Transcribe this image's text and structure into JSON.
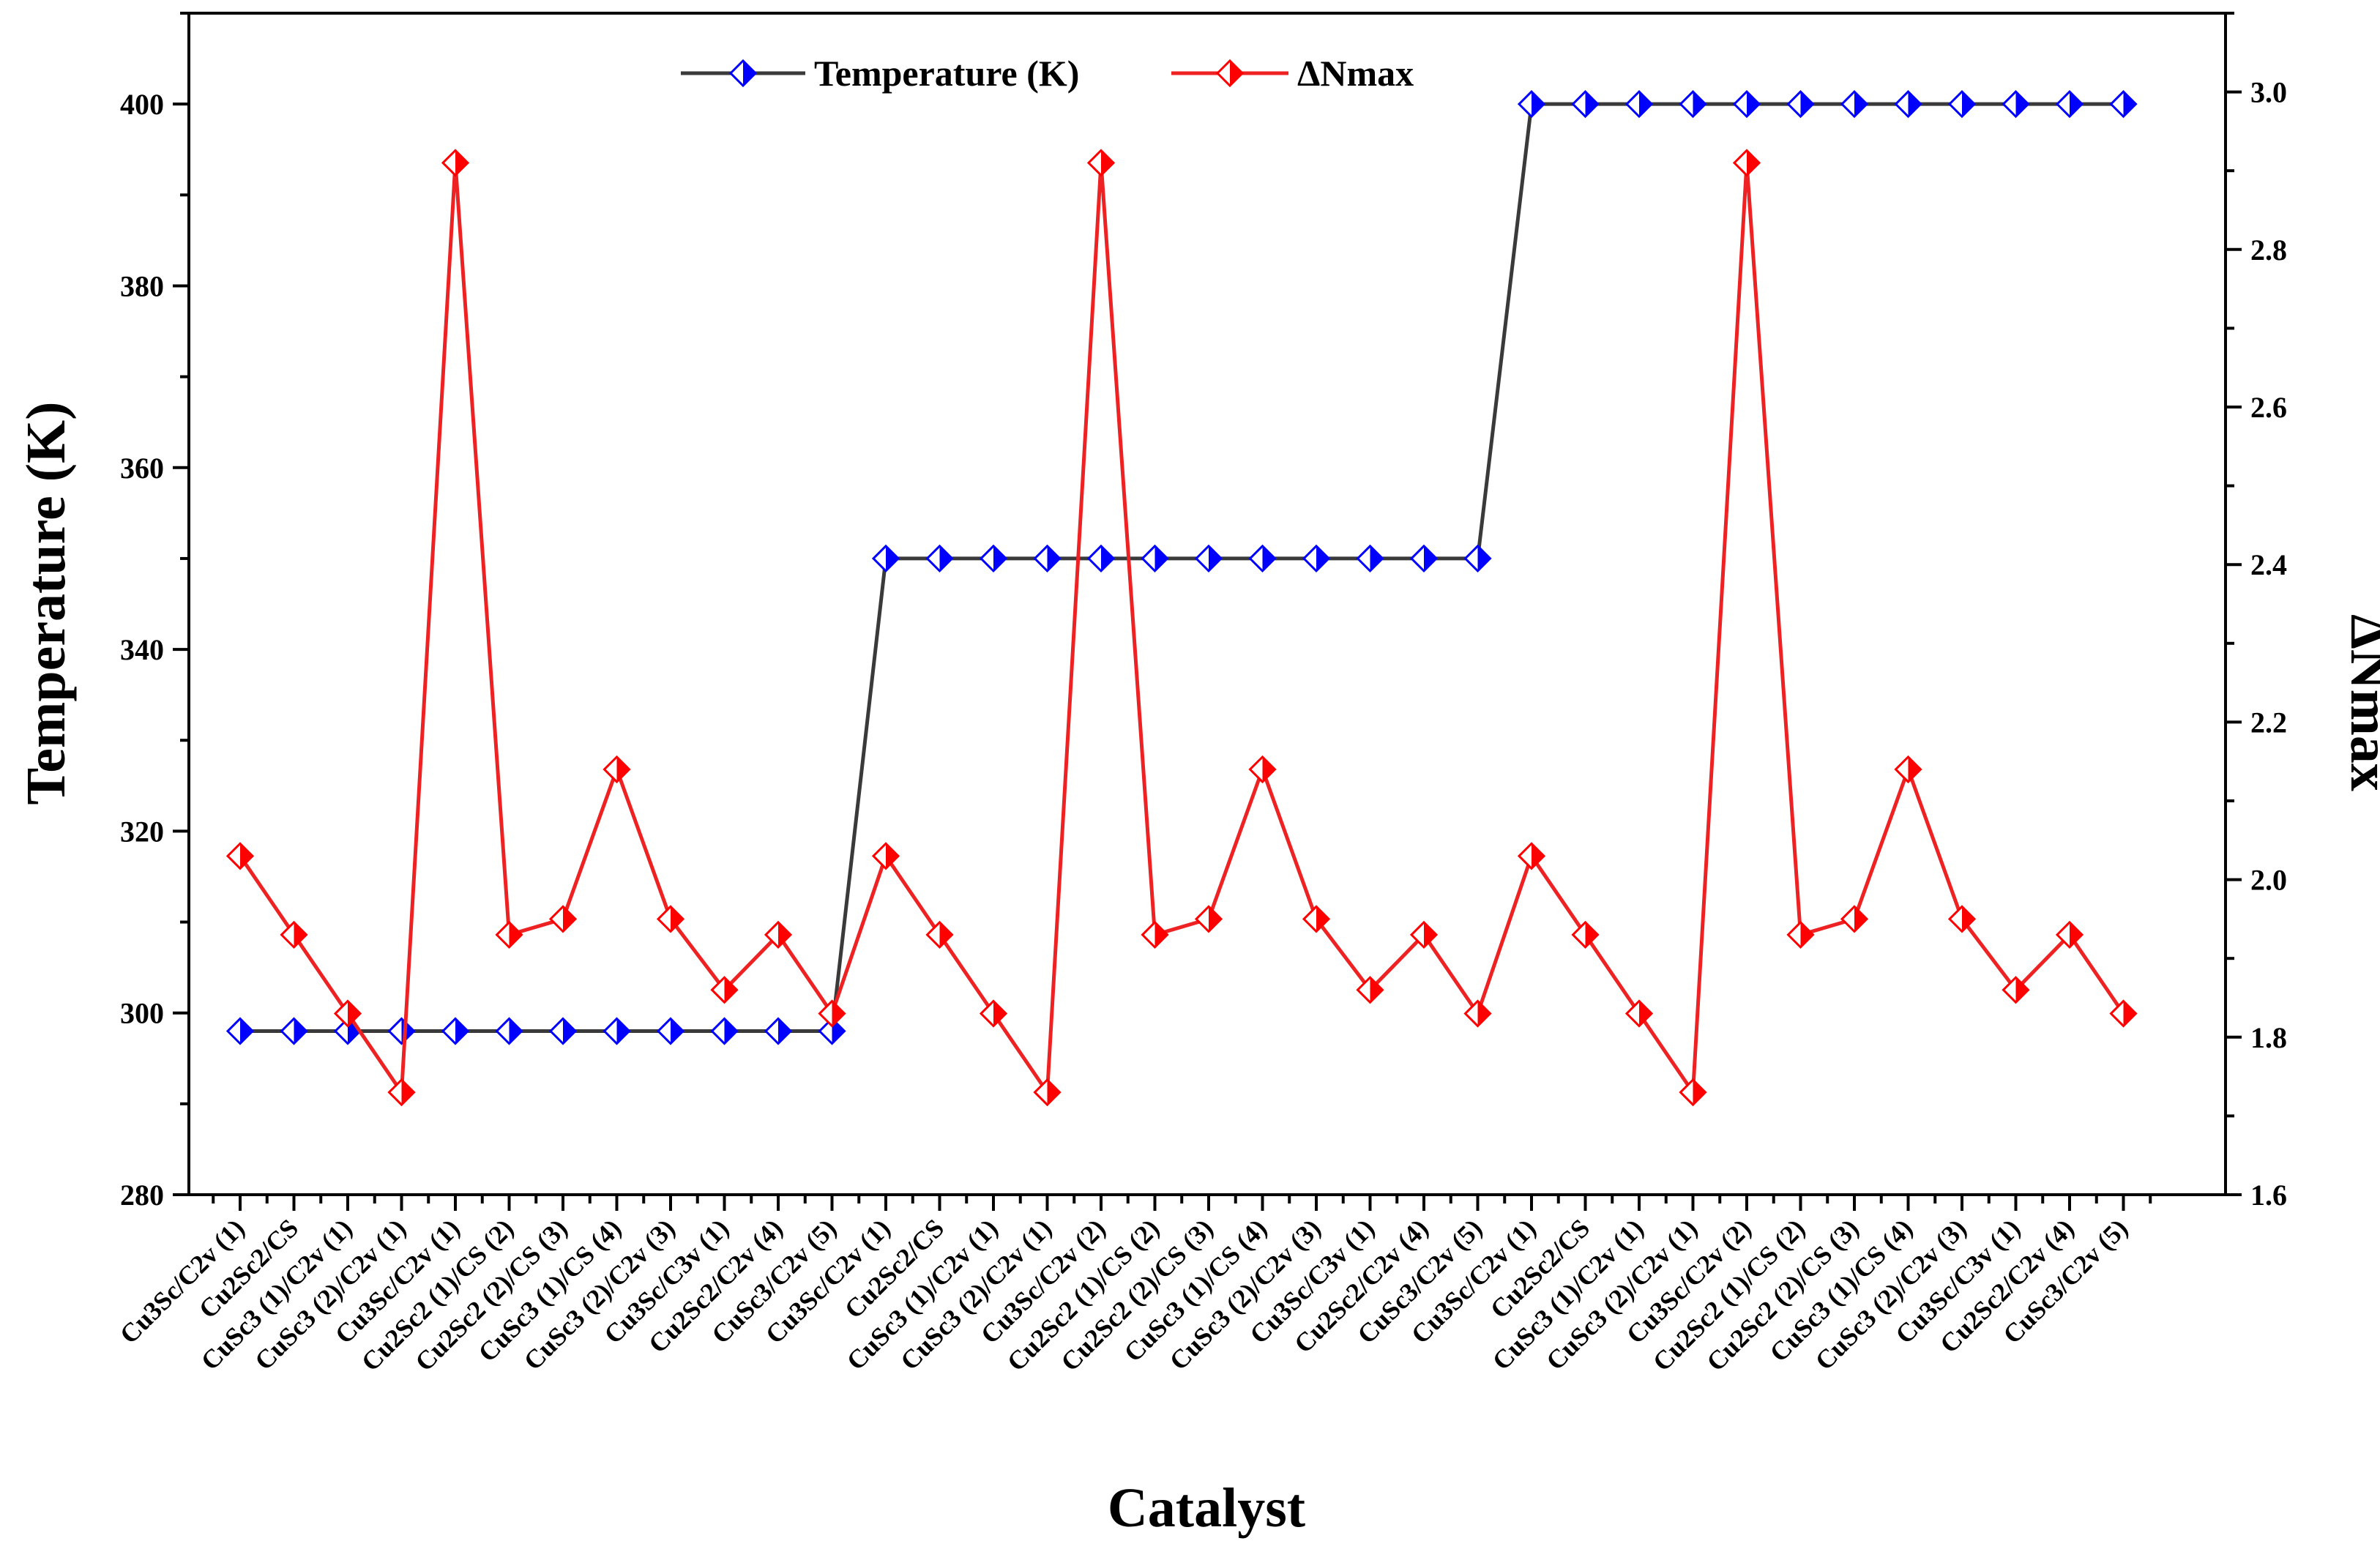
{
  "chart_data": {
    "type": "line",
    "title": "",
    "xlabel": "Catalyst",
    "ylabel": "Temperature (K)",
    "y2label": "ΔNmax",
    "ylim": [
      280,
      410
    ],
    "y2lim": [
      1.6,
      3.1
    ],
    "yticks": [
      "280",
      "300",
      "320",
      "340",
      "360",
      "380",
      "400"
    ],
    "y2ticks": [
      "1.6",
      "1.8",
      "2.0",
      "2.2",
      "2.4",
      "2.6",
      "2.8",
      "3.0"
    ],
    "legend_position": "top-center",
    "categories": [
      "Cu3Sc/C2v (1)",
      "Cu2Sc2/CS",
      "CuSc3 (1)/C2v (1)",
      "CuSc3 (2)/C2v (1)",
      "Cu3Sc/C2v (1)",
      "Cu2Sc2 (1)/CS (2)",
      "Cu2Sc2 (2)/CS (3)",
      "CuSc3 (1)/CS (4)",
      "CuSc3 (2)/C2v (3)",
      "Cu3Sc/C3v (1)",
      "Cu2Sc2/C2v (4)",
      "CuSc3/C2v (5)",
      "Cu3Sc/C2v (1)",
      "Cu2Sc2/CS",
      "CuSc3 (1)/C2v (1)",
      "CuSc3 (2)/C2v (1)",
      "Cu3Sc/C2v (2)",
      "Cu2Sc2 (1)/CS (2)",
      "Cu2Sc2 (2)/CS (3)",
      "CuSc3 (1)/CS (4)",
      "CuSc3 (2)/C2v (3)",
      "Cu3Sc/C3v (1)",
      "Cu2Sc2/C2v (4)",
      "CuSc3/C2v (5)",
      "Cu3Sc/C2v (1)",
      "Cu2Sc2/CS",
      "CuSc3 (1)/C2v (1)",
      "CuSc3 (2)/C2v (1)",
      "Cu3Sc/C2v (2)",
      "Cu2Sc2 (1)/CS (2)",
      "Cu2Sc2 (2)/CS (3)",
      "CuSc3 (1)/CS (4)",
      "CuSc3 (2)/C2v (3)",
      "Cu3Sc/C3v (1)",
      "Cu2Sc2/C2v (4)",
      "CuSc3/C2v (5)"
    ],
    "series": [
      {
        "name": "Temperature (K)",
        "axis": "left",
        "color": "#0000ff",
        "line_color": "#3a3a3a",
        "marker": "half-filled-diamond",
        "values": [
          298,
          298,
          298,
          298,
          298,
          298,
          298,
          298,
          298,
          298,
          298,
          298,
          350,
          350,
          350,
          350,
          350,
          350,
          350,
          350,
          350,
          350,
          350,
          350,
          400,
          400,
          400,
          400,
          400,
          400,
          400,
          400,
          400,
          400,
          400,
          400
        ]
      },
      {
        "name": "ΔNmax",
        "axis": "right",
        "color": "#ff0000",
        "line_color": "#ee2222",
        "marker": "half-filled-diamond",
        "values": [
          2.03,
          1.93,
          1.83,
          1.73,
          2.91,
          1.93,
          1.95,
          2.14,
          1.95,
          1.86,
          1.93,
          1.83,
          2.03,
          1.93,
          1.83,
          1.73,
          2.91,
          1.93,
          1.95,
          2.14,
          1.95,
          1.86,
          1.93,
          1.83,
          2.03,
          1.93,
          1.83,
          1.73,
          2.91,
          1.93,
          1.95,
          2.14,
          1.95,
          1.86,
          1.93,
          1.83
        ]
      }
    ]
  }
}
